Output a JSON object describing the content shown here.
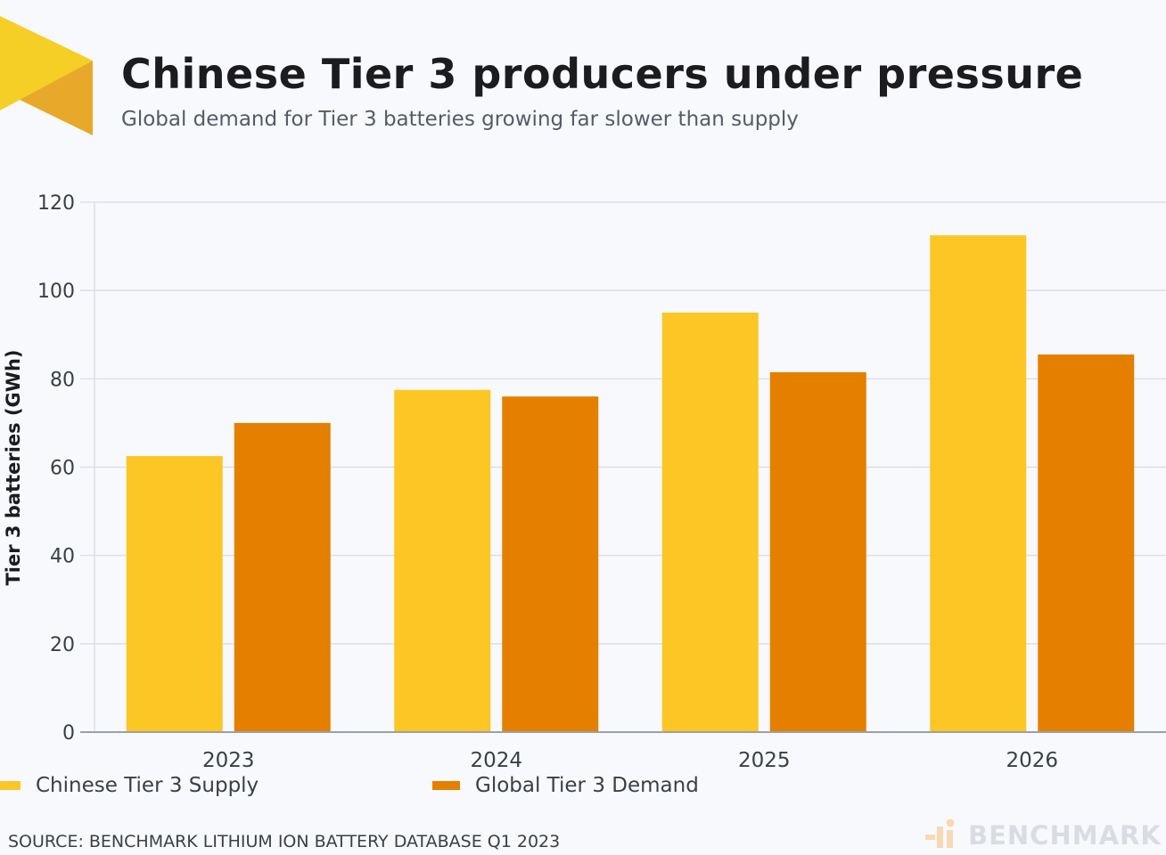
{
  "header": {
    "title": "Chinese Tier 3 producers under pressure",
    "subtitle": "Global demand for Tier 3 batteries growing far slower than supply"
  },
  "colors": {
    "supply": "#fcc624",
    "demand": "#e57f00",
    "grid": "#dcdfe6",
    "axis": "#9aa0a8",
    "logo_light": "#f5cf25",
    "logo_dark": "#e8a92a",
    "brand_mark": "#f7d9b4"
  },
  "chart_data": {
    "type": "bar",
    "title": "Chinese Tier 3 producers under pressure",
    "subtitle": "Global demand for Tier 3 batteries growing far slower than supply",
    "xlabel": "",
    "ylabel": "Tier 3 batteries (GWh)",
    "ylim": [
      0,
      120
    ],
    "yticks": [
      0,
      20,
      40,
      60,
      80,
      100,
      120
    ],
    "categories": [
      "2023",
      "2024",
      "2025",
      "2026"
    ],
    "series": [
      {
        "name": "Chinese Tier 3 Supply",
        "values": [
          62.5,
          77.5,
          95.0,
          112.5
        ]
      },
      {
        "name": "Global Tier 3 Demand",
        "values": [
          70.0,
          76.0,
          81.5,
          85.5
        ]
      }
    ],
    "grid": true,
    "legend_position": "bottom-left"
  },
  "footer": {
    "source": "SOURCE: BENCHMARK LITHIUM ION BATTERY DATABASE Q1 2023",
    "brand": "BENCHMARK"
  }
}
